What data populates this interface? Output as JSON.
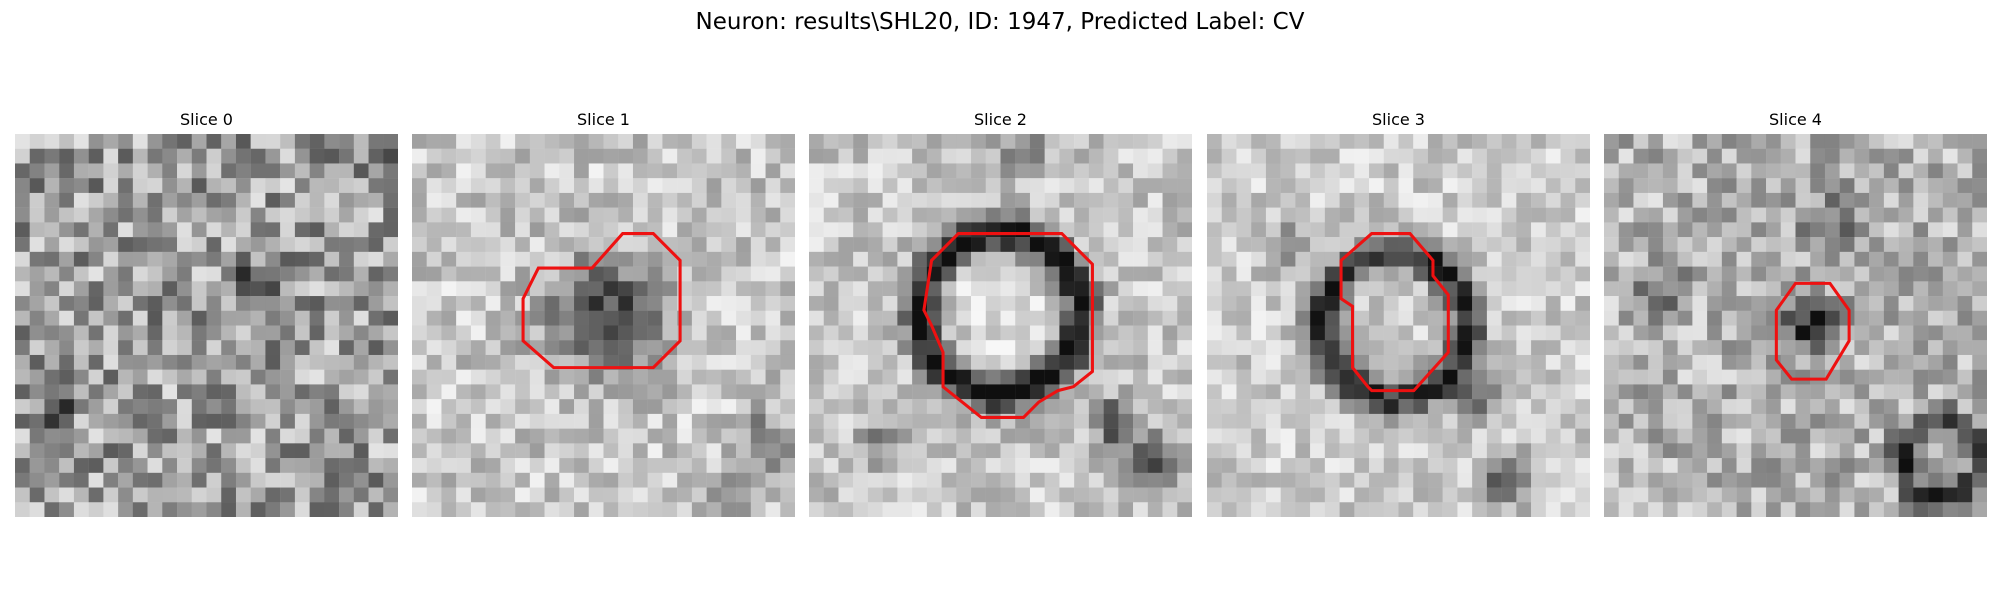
{
  "figure": {
    "title": "Neuron: results\\SHL20, ID: 1947, Predicted Label: CV"
  },
  "colors": {
    "contour": "#ee1111",
    "background": "#ffffff"
  },
  "panels": [
    {
      "label": "Slice 0"
    },
    {
      "label": "Slice 1"
    },
    {
      "label": "Slice 2"
    },
    {
      "label": "Slice 3"
    },
    {
      "label": "Slice 4"
    }
  ]
}
